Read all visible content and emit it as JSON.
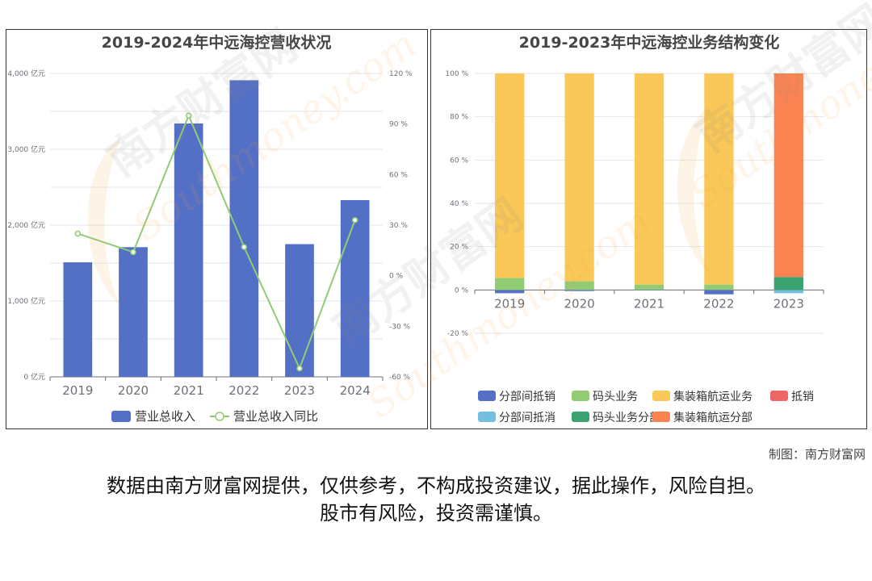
{
  "chart_data": [
    {
      "type": "bar",
      "title": "2019-2024年中远海控营收状况",
      "categories": [
        "2019",
        "2020",
        "2021",
        "2022",
        "2023",
        "2024"
      ],
      "series": [
        {
          "name": "营业总收入",
          "type": "bar",
          "axis": "left",
          "values": [
            1510,
            1710,
            3340,
            3910,
            1750,
            2330
          ]
        },
        {
          "name": "营业总收入同比",
          "type": "line",
          "axis": "right",
          "values": [
            25,
            14,
            95,
            17,
            -55,
            33
          ]
        }
      ],
      "y_left": {
        "ticks": [
          "0 亿元",
          "1,000 亿元",
          "2,000 亿元",
          "3,000 亿元",
          "4,000 亿元"
        ],
        "lim": [
          0,
          4000
        ]
      },
      "y_right": {
        "ticks": [
          "-60 %",
          "-30 %",
          "0 %",
          "30 %",
          "60 %",
          "90 %",
          "120 %"
        ],
        "lim": [
          -60,
          120
        ]
      },
      "legend": "bottom",
      "colors": {
        "bar": "#5470c6",
        "line": "#91cc75"
      }
    },
    {
      "type": "bar",
      "stacked": true,
      "title": "2019-2023年中远海控业务结构变化",
      "categories": [
        "2019",
        "2020",
        "2021",
        "2022",
        "2023"
      ],
      "series": [
        {
          "name": "分部间抵销",
          "color": "#5470c6",
          "values": [
            -1.5,
            -0.5,
            -0.2,
            -2,
            0
          ]
        },
        {
          "name": "码头业务",
          "color": "#91cc75",
          "values": [
            5.5,
            4,
            2.5,
            2.5,
            0
          ]
        },
        {
          "name": "集装箱航运业务",
          "color": "#fac858",
          "values": [
            94.5,
            96,
            97.5,
            97.5,
            0
          ]
        },
        {
          "name": "抵销",
          "color": "#ee6666",
          "values": [
            0,
            0,
            0,
            0,
            0
          ]
        },
        {
          "name": "分部间抵消",
          "color": "#73c0de",
          "values": [
            0,
            0,
            0,
            0,
            -1.5
          ]
        },
        {
          "name": "码头业务分部",
          "color": "#3ba272",
          "values": [
            0,
            0,
            0,
            0,
            6
          ]
        },
        {
          "name": "集装箱航运分部",
          "color": "#fc8452",
          "values": [
            0,
            0,
            0,
            0,
            94
          ]
        }
      ],
      "y": {
        "ticks": [
          "-20 %",
          "0 %",
          "20 %",
          "40 %",
          "60 %",
          "80 %",
          "100 %"
        ],
        "lim": [
          -20,
          100
        ]
      },
      "legend": "bottom"
    }
  ],
  "credit": "制图：南方财富网",
  "disclaimer": {
    "line1": "数据由南方财富网提供，仅供参考，不构成投资建议，据此操作，风险自担。",
    "line2": "股市有风险，投资需谨慎。"
  },
  "watermark": {
    "text1": "南方财富网",
    "text2": "Southmoney.com"
  }
}
